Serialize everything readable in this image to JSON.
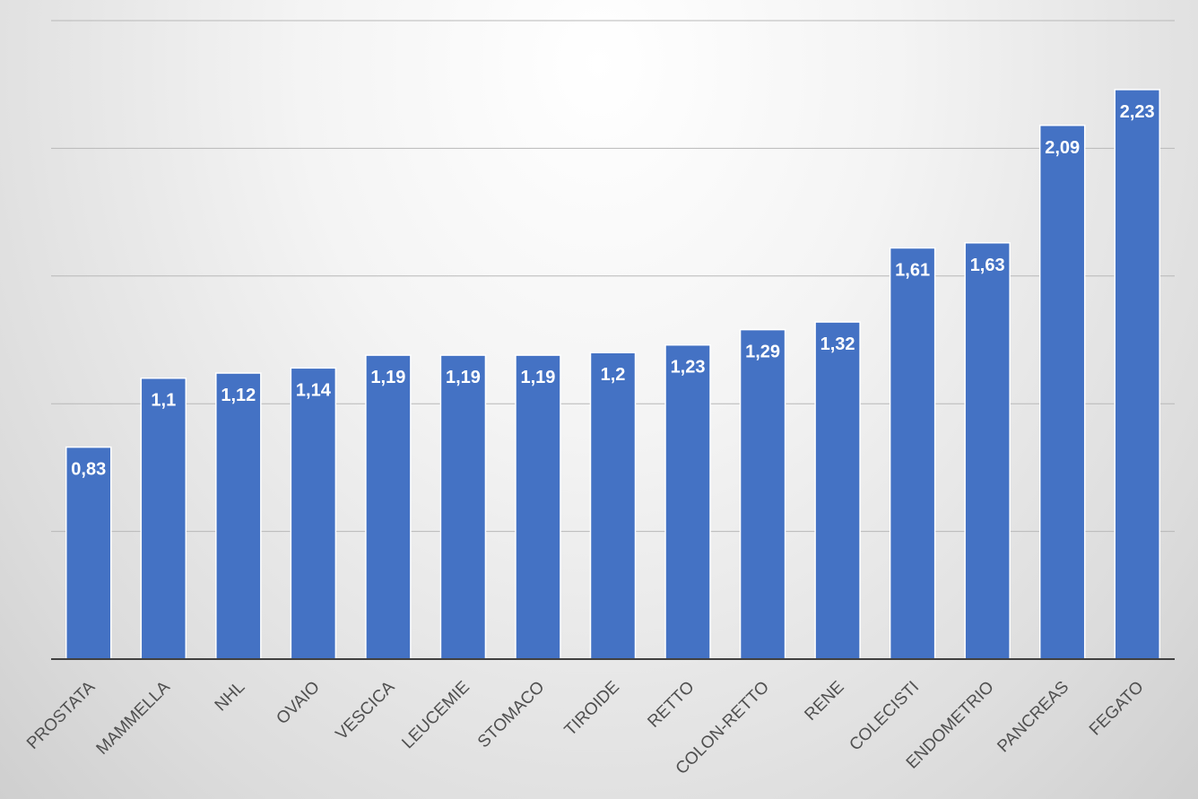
{
  "chart_data": {
    "type": "bar",
    "categories": [
      "PROSTATA",
      "MAMMELLA",
      "NHL",
      "OVAIO",
      "VESCICA",
      "LEUCEMIE",
      "STOMACO",
      "TIROIDE",
      "RETTO",
      "COLON-RETTO",
      "RENE",
      "COLECISTI",
      "ENDOMETRIO",
      "PANCREAS",
      "FEGATO"
    ],
    "values": [
      0.83,
      1.1,
      1.12,
      1.14,
      1.19,
      1.19,
      1.19,
      1.2,
      1.23,
      1.29,
      1.32,
      1.61,
      1.63,
      2.09,
      2.23
    ],
    "data_labels": [
      "0,83",
      "1,1",
      "1,12",
      "1,14",
      "1,19",
      "1,19",
      "1,19",
      "1,2",
      "1,23",
      "1,29",
      "1,32",
      "1,61",
      "1,63",
      "2,09",
      "2,23"
    ],
    "ylim": [
      0,
      2.5
    ],
    "y_grid_step": 0.5,
    "grid": true,
    "legend": "none",
    "bar_color": "#4472c4",
    "title": "",
    "xlabel": "",
    "ylabel": ""
  }
}
